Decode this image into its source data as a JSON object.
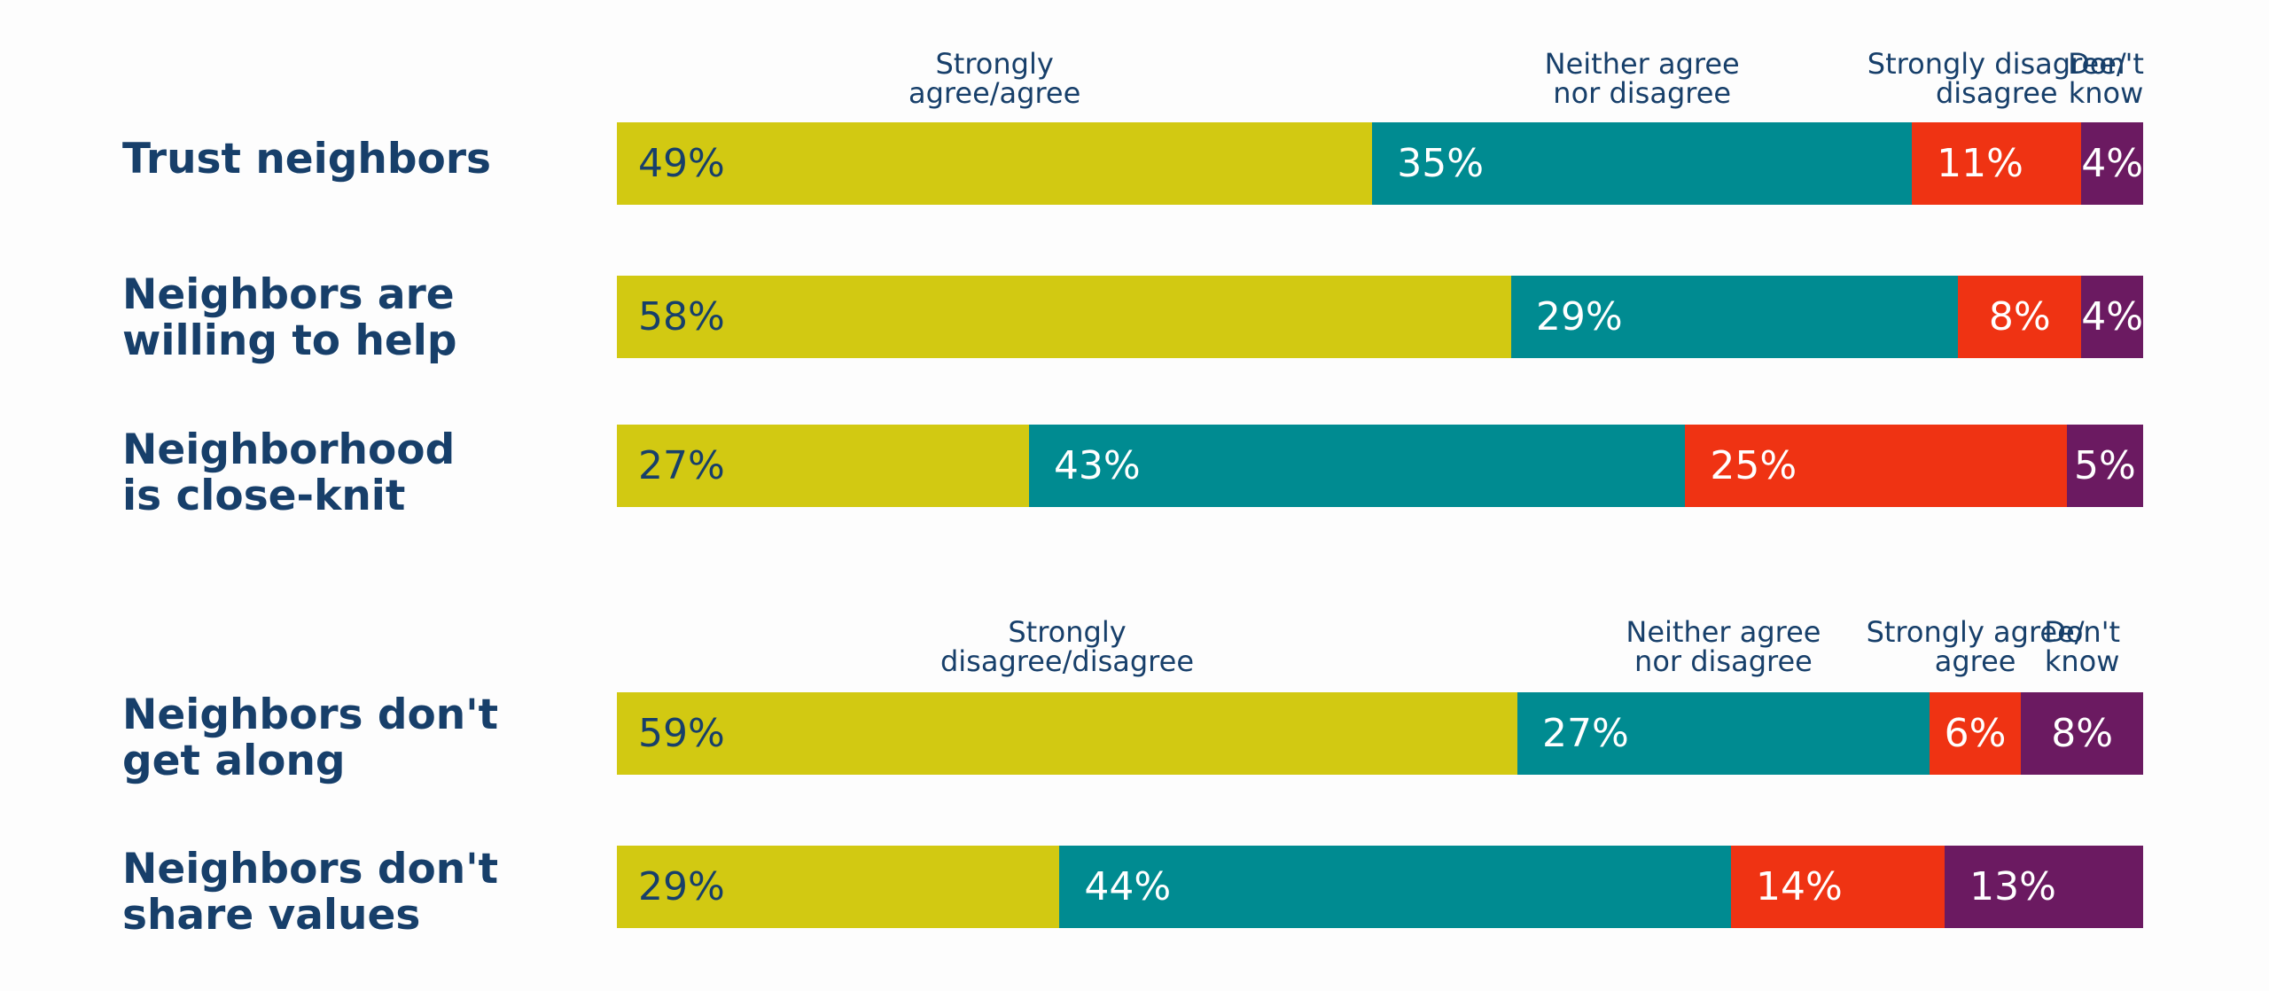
{
  "colors": {
    "segments": [
      "#d2c912",
      "#008b91",
      "#ef3313",
      "#6b1a61"
    ],
    "label_dark": "#173f6a",
    "label_light": "#ffffff"
  },
  "chart_data": [
    {
      "type": "bar",
      "orientation": "horizontal-stacked",
      "segment_labels": [
        "Strongly\nagree/agree",
        "Neither agree\nnor disagree",
        "Strongly disagree/\ndisagree",
        "Don't\nknow"
      ],
      "categories": [
        "Trust neighbors",
        "Neighbors are\nwilling to help",
        "Neighborhood\nis close-knit"
      ],
      "rows": [
        {
          "values": [
            49,
            35,
            11,
            4
          ],
          "labels": [
            "49%",
            "35%",
            "11%",
            "4%"
          ]
        },
        {
          "values": [
            58,
            29,
            8,
            4
          ],
          "labels": [
            "58%",
            "29%",
            "8%",
            "4%"
          ]
        },
        {
          "values": [
            27,
            43,
            25,
            5
          ],
          "labels": [
            "27%",
            "43%",
            "25%",
            "5%"
          ]
        }
      ]
    },
    {
      "type": "bar",
      "orientation": "horizontal-stacked",
      "segment_labels": [
        "Strongly\ndisagree/disagree",
        "Neither agree\nnor disagree",
        "Strongly agree/\nagree",
        "Don't\nknow"
      ],
      "categories": [
        "Neighbors don't\nget along",
        "Neighbors don't\nshare values"
      ],
      "rows": [
        {
          "values": [
            59,
            27,
            6,
            8
          ],
          "labels": [
            "59%",
            "27%",
            "6%",
            "8%"
          ]
        },
        {
          "values": [
            29,
            44,
            14,
            13
          ],
          "labels": [
            "29%",
            "44%",
            "14%",
            "13%"
          ]
        }
      ]
    }
  ]
}
